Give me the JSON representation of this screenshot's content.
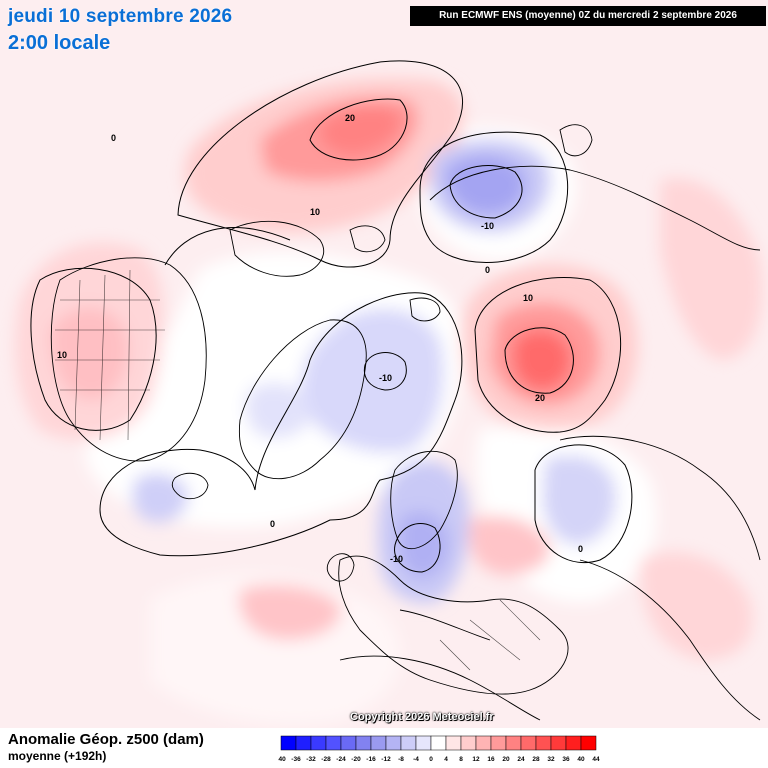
{
  "header": {
    "date": "jeudi 10 septembre 2026",
    "time": "2:00 locale",
    "run": "Run ECMWF ENS (moyenne) 0Z du mercredi 2 septembre 2026"
  },
  "footer": {
    "copyright": "Copyright 2026 Meteociel.fr",
    "variable": "Anomalie Géop. z500 (dam)",
    "subtitle": "moyenne   (+192h)"
  },
  "colorbar": {
    "ticks": [
      "-40",
      "-36",
      "-32",
      "-28",
      "-24",
      "-20",
      "-16",
      "-12",
      "-8",
      "-4",
      "0",
      "4",
      "8",
      "12",
      "16",
      "20",
      "24",
      "28",
      "32",
      "36",
      "40",
      "44"
    ],
    "colors": [
      "#0000ff",
      "#1f1fff",
      "#3a3aff",
      "#5252ff",
      "#6a6af5",
      "#8282f0",
      "#9a9af0",
      "#b4b4f4",
      "#cdcdf8",
      "#e6e6fc",
      "#ffffff",
      "#ffe6e6",
      "#ffcdcd",
      "#ffb4b4",
      "#ff9a9a",
      "#ff8282",
      "#ff6a6a",
      "#ff5252",
      "#ff3a3a",
      "#ff1f1f",
      "#ff0000"
    ]
  },
  "contour_labels": [
    {
      "text": "0",
      "name": "contour-label-0-greenland-west"
    },
    {
      "text": "20",
      "name": "contour-label-20-north-pacific"
    },
    {
      "text": "10",
      "name": "contour-label-10-north-pacific"
    },
    {
      "text": "-10",
      "name": "contour-label-minus10-west-siberia"
    },
    {
      "text": "0",
      "name": "contour-label-0-west-siberia"
    },
    {
      "text": "10",
      "name": "contour-label-10-north-america"
    },
    {
      "text": "-10",
      "name": "contour-label-minus10-arctic"
    },
    {
      "text": "10",
      "name": "contour-label-10-ural"
    },
    {
      "text": "20",
      "name": "contour-label-20-ural"
    },
    {
      "text": "0",
      "name": "contour-label-0-atlantic"
    },
    {
      "text": "-10",
      "name": "contour-label-minus10-europe"
    },
    {
      "text": "0",
      "name": "contour-label-0-middle-east"
    }
  ]
}
